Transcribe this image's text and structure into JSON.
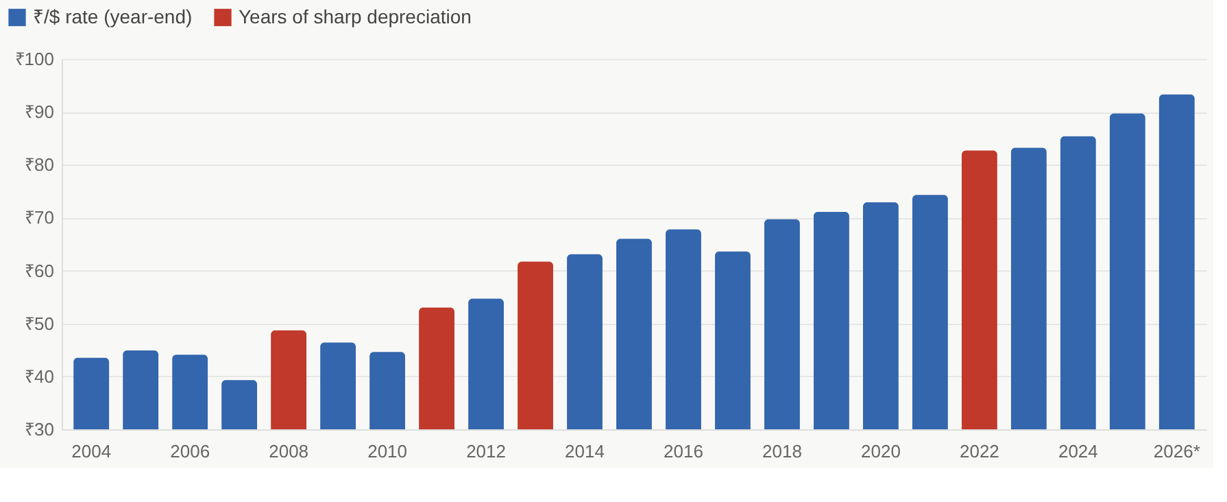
{
  "chart_data": {
    "type": "bar",
    "categories": [
      "2004",
      null,
      "2006",
      null,
      "2008",
      null,
      "2010",
      null,
      "2012",
      null,
      "2014",
      null,
      "2016",
      null,
      "2018",
      null,
      "2020",
      null,
      "2022",
      null,
      "2024",
      null,
      "2026*"
    ],
    "series": [
      {
        "name": "₹/$ rate (year-end)",
        "color": "#3366ad",
        "values": [
          43.5,
          44.9,
          44.1,
          39.3,
          null,
          46.4,
          44.6,
          null,
          54.7,
          null,
          63.1,
          66.0,
          67.8,
          63.6,
          69.7,
          71.1,
          72.9,
          74.3,
          null,
          83.2,
          85.4,
          89.7,
          93.3
        ]
      },
      {
        "name": "Years of sharp depreciation",
        "color": "#c0392b",
        "values": [
          null,
          null,
          null,
          null,
          48.7,
          null,
          null,
          53.0,
          null,
          61.7,
          null,
          null,
          null,
          null,
          null,
          null,
          null,
          null,
          82.7,
          null,
          null,
          null,
          null
        ]
      }
    ],
    "ylim": [
      30,
      100
    ],
    "yticks": [
      {
        "value": 30,
        "label": "₹30"
      },
      {
        "value": 40,
        "label": "₹40"
      },
      {
        "value": 50,
        "label": "₹50"
      },
      {
        "value": 60,
        "label": "₹60"
      },
      {
        "value": 70,
        "label": "₹70"
      },
      {
        "value": 80,
        "label": "₹80"
      },
      {
        "value": 90,
        "label": "₹90"
      },
      {
        "value": 100,
        "label": "₹100"
      }
    ],
    "grid": "y",
    "legend": "top left"
  }
}
